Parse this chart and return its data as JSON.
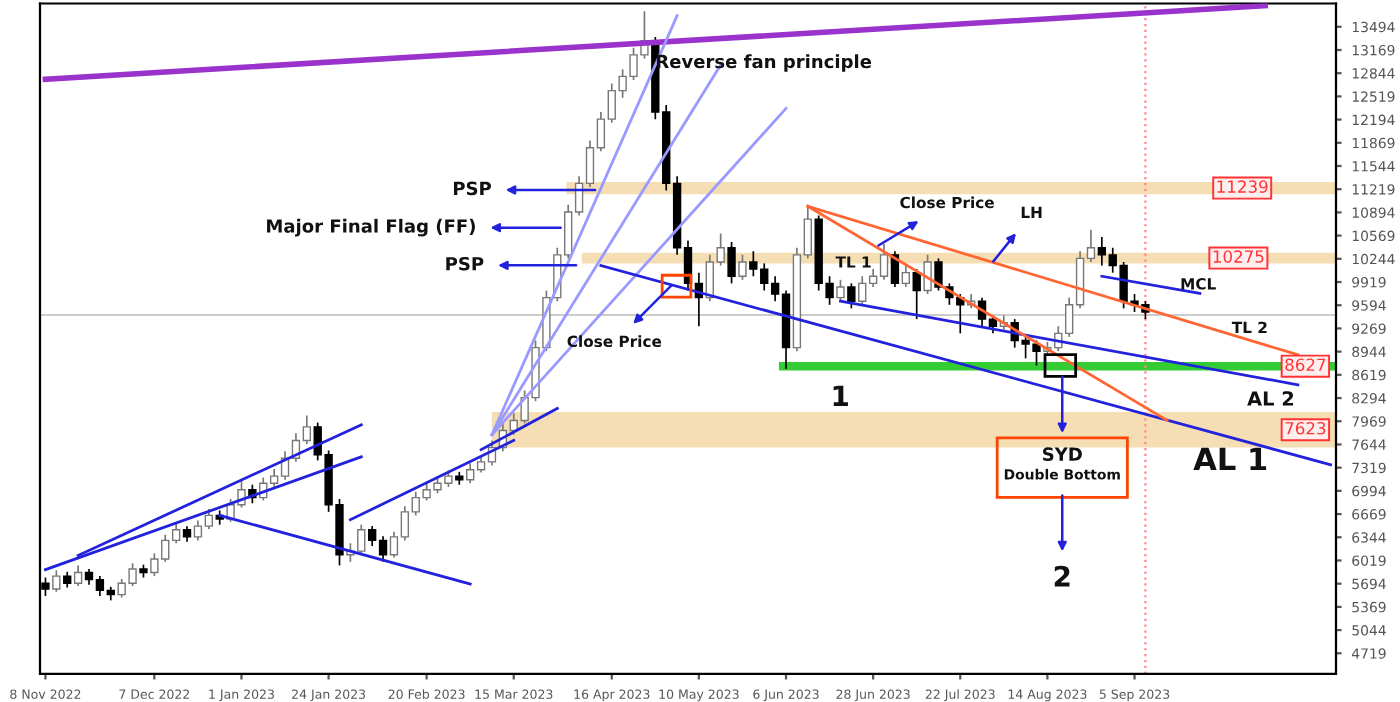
{
  "chart_data": {
    "type": "candlestick",
    "categories": [
      "8 Nov 2022",
      null,
      null,
      null,
      null,
      null,
      null,
      null,
      null,
      null,
      "7 Dec 2022",
      null,
      null,
      null,
      null,
      null,
      null,
      null,
      "1 Jan 2023",
      null,
      null,
      null,
      null,
      null,
      null,
      null,
      "24 Jan 2023",
      null,
      null,
      null,
      null,
      null,
      null,
      null,
      null,
      "20 Feb 2023",
      null,
      null,
      null,
      null,
      null,
      null,
      null,
      "15 Mar 2023",
      null,
      null,
      null,
      null,
      null,
      null,
      null,
      null,
      "16 Apr 2023",
      null,
      null,
      null,
      null,
      null,
      null,
      null,
      "10 May 2023",
      null,
      null,
      null,
      null,
      null,
      null,
      null,
      "6 Jun 2023",
      null,
      null,
      null,
      null,
      null,
      null,
      null,
      "28 Jun 2023",
      null,
      null,
      null,
      null,
      null,
      null,
      null,
      "22 Jul 2023",
      null,
      null,
      null,
      null,
      null,
      null,
      null,
      "14 Aug 2023",
      null,
      null,
      null,
      null,
      null,
      null,
      null,
      "5 Sep 2023",
      null,
      null,
      null,
      null,
      null,
      null,
      null,
      null,
      null,
      null,
      null,
      null,
      null,
      null,
      null,
      null,
      null,
      null
    ],
    "ohlc": [
      [
        5700,
        5780,
        5520,
        5620
      ],
      [
        5620,
        5880,
        5580,
        5800
      ],
      [
        5800,
        5860,
        5640,
        5700
      ],
      [
        5700,
        5950,
        5660,
        5850
      ],
      [
        5850,
        5900,
        5680,
        5750
      ],
      [
        5750,
        5800,
        5520,
        5600
      ],
      [
        5600,
        5650,
        5460,
        5540
      ],
      [
        5540,
        5760,
        5500,
        5700
      ],
      [
        5700,
        5980,
        5660,
        5900
      ],
      [
        5900,
        5960,
        5780,
        5850
      ],
      [
        5850,
        6120,
        5800,
        6040
      ],
      [
        6040,
        6380,
        6000,
        6300
      ],
      [
        6300,
        6540,
        6260,
        6450
      ],
      [
        6450,
        6500,
        6280,
        6350
      ],
      [
        6350,
        6580,
        6300,
        6500
      ],
      [
        6500,
        6740,
        6460,
        6650
      ],
      [
        6650,
        6720,
        6520,
        6600
      ],
      [
        6600,
        6880,
        6560,
        6800
      ],
      [
        6800,
        7150,
        6760,
        7010
      ],
      [
        7010,
        7080,
        6820,
        6900
      ],
      [
        6900,
        7180,
        6860,
        7100
      ],
      [
        7100,
        7300,
        7050,
        7200
      ],
      [
        7200,
        7550,
        7150,
        7450
      ],
      [
        7450,
        7800,
        7400,
        7700
      ],
      [
        7700,
        8050,
        7650,
        7890
      ],
      [
        7890,
        7950,
        7420,
        7500
      ],
      [
        7500,
        7560,
        6700,
        6800
      ],
      [
        6800,
        6880,
        5950,
        6100
      ],
      [
        6100,
        6260,
        6000,
        6150
      ],
      [
        6150,
        6520,
        6100,
        6450
      ],
      [
        6450,
        6500,
        6220,
        6300
      ],
      [
        6300,
        6360,
        6000,
        6100
      ],
      [
        6100,
        6420,
        6060,
        6350
      ],
      [
        6350,
        6780,
        6300,
        6700
      ],
      [
        6700,
        6980,
        6650,
        6900
      ],
      [
        6900,
        7100,
        6860,
        7010
      ],
      [
        7010,
        7200,
        6960,
        7100
      ],
      [
        7100,
        7280,
        7050,
        7200
      ],
      [
        7200,
        7260,
        7080,
        7150
      ],
      [
        7150,
        7380,
        7100,
        7290
      ],
      [
        7290,
        7480,
        7250,
        7400
      ],
      [
        7400,
        7700,
        7350,
        7600
      ],
      [
        7600,
        7950,
        7550,
        7840
      ],
      [
        7840,
        8080,
        7780,
        7980
      ],
      [
        7980,
        8400,
        7940,
        8300
      ],
      [
        8300,
        9100,
        8250,
        9000
      ],
      [
        9000,
        9800,
        8950,
        9700
      ],
      [
        9700,
        10400,
        9650,
        10300
      ],
      [
        10300,
        11000,
        10250,
        10900
      ],
      [
        10900,
        11400,
        10850,
        11300
      ],
      [
        11300,
        11900,
        11250,
        11800
      ],
      [
        11800,
        12300,
        11750,
        12200
      ],
      [
        12200,
        12700,
        12150,
        12600
      ],
      [
        12600,
        12900,
        12500,
        12800
      ],
      [
        12800,
        13200,
        12750,
        13100
      ],
      [
        13100,
        13710,
        13050,
        13300
      ],
      [
        13300,
        13350,
        12200,
        12300
      ],
      [
        12300,
        12400,
        11200,
        11300
      ],
      [
        11300,
        11400,
        10300,
        10400
      ],
      [
        10400,
        10500,
        9800,
        9900
      ],
      [
        9900,
        10050,
        9300,
        9700
      ],
      [
        9700,
        10300,
        9650,
        10200
      ],
      [
        10200,
        10600,
        10150,
        10400
      ],
      [
        10400,
        10480,
        9900,
        10000
      ],
      [
        10000,
        10300,
        9950,
        10200
      ],
      [
        10200,
        10350,
        10000,
        10100
      ],
      [
        10100,
        10180,
        9800,
        9900
      ],
      [
        9900,
        10000,
        9650,
        9750
      ],
      [
        9750,
        9800,
        8700,
        9000
      ],
      [
        9000,
        10400,
        8950,
        10300
      ],
      [
        10300,
        10980,
        10250,
        10800
      ],
      [
        10800,
        10850,
        9800,
        9900
      ],
      [
        9900,
        10000,
        9600,
        9700
      ],
      [
        9700,
        9950,
        9650,
        9850
      ],
      [
        9850,
        9900,
        9550,
        9650
      ],
      [
        9650,
        10000,
        9600,
        9900
      ],
      [
        9900,
        10100,
        9850,
        10000
      ],
      [
        10000,
        10450,
        9950,
        10300
      ],
      [
        10300,
        10350,
        9850,
        9900
      ],
      [
        9900,
        10150,
        9850,
        10050
      ],
      [
        10050,
        10100,
        9400,
        9800
      ],
      [
        9800,
        10300,
        9750,
        10200
      ],
      [
        10200,
        10250,
        9800,
        9850
      ],
      [
        9850,
        9900,
        9600,
        9700
      ],
      [
        9700,
        9750,
        9200,
        9600
      ],
      [
        9600,
        9750,
        9550,
        9650
      ],
      [
        9650,
        9700,
        9300,
        9400
      ],
      [
        9400,
        9450,
        9200,
        9300
      ],
      [
        9300,
        9450,
        9250,
        9350
      ],
      [
        9350,
        9400,
        9000,
        9100
      ],
      [
        9100,
        9180,
        8850,
        9050
      ],
      [
        9050,
        9100,
        8750,
        8950
      ],
      [
        8950,
        9080,
        8900,
        9000
      ],
      [
        9000,
        9300,
        8950,
        9200
      ],
      [
        9200,
        9700,
        9150,
        9600
      ],
      [
        9600,
        10350,
        9550,
        10250
      ],
      [
        10250,
        10650,
        10200,
        10400
      ],
      [
        10400,
        10550,
        10150,
        10300
      ],
      [
        10300,
        10400,
        10050,
        10150
      ],
      [
        10150,
        10200,
        9550,
        9650
      ],
      [
        9650,
        9750,
        9500,
        9600
      ],
      [
        9600,
        9650,
        9400,
        9500
      ],
      null,
      null,
      null,
      null,
      null,
      null,
      null,
      null,
      null,
      null,
      null,
      null,
      null,
      null,
      null,
      null,
      null
    ],
    "series": [
      {
        "type": "line",
        "color": "#9933cc",
        "values": [
          12760,
          null,
          null,
          null,
          null,
          null,
          null,
          null,
          null,
          null,
          null,
          null,
          null,
          null,
          null,
          null,
          null,
          null,
          null,
          null,
          null,
          null,
          null,
          null,
          null,
          null,
          null,
          null,
          null,
          null,
          null,
          null,
          null,
          null,
          null,
          null,
          null,
          null,
          null,
          null,
          null,
          null,
          null,
          null,
          null,
          null,
          null,
          null,
          null,
          null,
          null,
          null,
          null,
          null,
          null,
          null,
          null,
          null,
          null,
          null,
          null,
          null,
          null,
          null,
          null,
          null,
          null,
          null,
          null,
          null,
          null,
          null,
          null,
          null,
          null,
          null,
          null,
          null,
          null,
          null,
          null,
          null,
          null,
          null,
          null,
          null,
          null,
          null,
          null,
          null,
          null,
          null,
          null,
          null,
          null,
          null,
          null,
          null,
          null,
          null,
          null,
          null,
          null,
          null,
          null,
          null,
          null,
          null,
          null,
          null,
          null,
          null,
          13790,
          null,
          null,
          null,
          null,
          null,
          null
        ]
      },
      {
        "type": "line",
        "color": "#2222dd",
        "values": [
          null,
          null,
          null,
          6090,
          null,
          null,
          null,
          null,
          null,
          null,
          null,
          null,
          null,
          null,
          null,
          null,
          null,
          null,
          null,
          null,
          null,
          null,
          null,
          null,
          null,
          null,
          null,
          null,
          null,
          7920,
          null,
          null,
          null,
          null,
          null,
          null,
          null,
          null,
          null,
          null,
          null,
          null,
          null,
          null,
          null,
          null,
          null,
          null,
          null,
          null,
          null,
          null,
          null,
          null,
          null,
          null,
          null,
          null,
          null,
          null,
          null,
          null,
          null,
          null,
          null,
          null,
          null,
          null,
          null,
          null,
          null,
          null,
          null,
          null,
          null,
          null,
          null,
          null,
          null,
          null,
          null,
          null,
          null,
          null,
          null,
          null,
          null,
          null,
          null,
          null,
          null,
          null,
          null,
          null,
          null,
          null,
          null,
          null,
          null,
          null,
          null,
          null,
          null,
          null,
          null,
          null,
          null,
          null,
          null,
          null,
          null,
          null,
          null,
          null,
          null,
          null,
          null,
          null,
          null
        ]
      },
      {
        "type": "line",
        "color": "#2222dd",
        "values": [
          5890,
          null,
          null,
          null,
          null,
          null,
          null,
          null,
          null,
          null,
          null,
          null,
          null,
          null,
          null,
          null,
          null,
          null,
          null,
          null,
          null,
          null,
          null,
          null,
          null,
          null,
          null,
          null,
          null,
          7470,
          null,
          null,
          null,
          null,
          null,
          null,
          null,
          null,
          null,
          null,
          null,
          null,
          null,
          null,
          null,
          null,
          null,
          null,
          null,
          null,
          null,
          null,
          null,
          null,
          null,
          null,
          null,
          null,
          null,
          null,
          null,
          null,
          null,
          null,
          null,
          null,
          null,
          null,
          null,
          null,
          null,
          null,
          null,
          null,
          null,
          null,
          null,
          null,
          null,
          null,
          null,
          null,
          null,
          null,
          null,
          null,
          null,
          null,
          null,
          null,
          null,
          null,
          null,
          null,
          null,
          null,
          null,
          null,
          null,
          null,
          null,
          null,
          null,
          null,
          null,
          null,
          null,
          null,
          null,
          null,
          null,
          null,
          null,
          null,
          null,
          null,
          null,
          null,
          null
        ]
      },
      {
        "type": "line",
        "color": "#2222dd",
        "values": [
          null,
          null,
          null,
          null,
          null,
          null,
          null,
          null,
          null,
          null,
          null,
          null,
          null,
          null,
          null,
          null,
          6650,
          null,
          null,
          null,
          null,
          null,
          null,
          null,
          null,
          null,
          null,
          null,
          null,
          null,
          null,
          null,
          null,
          null,
          null,
          null,
          null,
          null,
          null,
          5690,
          null,
          null,
          null,
          null,
          null,
          null,
          null,
          null,
          null,
          null,
          null,
          null,
          null,
          null,
          null,
          null,
          null,
          null,
          null,
          null,
          null,
          null,
          null,
          null,
          null,
          null,
          null,
          null,
          null,
          null,
          null,
          null,
          null,
          null,
          null,
          null,
          null,
          null,
          null,
          null,
          null,
          null,
          null,
          null,
          null,
          null,
          null,
          null,
          null,
          null,
          null,
          null,
          null,
          null,
          null,
          null,
          null,
          null,
          null,
          null,
          null,
          null,
          null,
          null,
          null,
          null,
          null,
          null,
          null,
          null,
          null,
          null,
          null,
          null,
          null,
          null,
          null,
          null,
          null
        ]
      },
      {
        "type": "line",
        "color": "#2222dd",
        "values": [
          null,
          null,
          null,
          null,
          null,
          null,
          null,
          null,
          null,
          null,
          null,
          null,
          null,
          null,
          null,
          null,
          null,
          null,
          null,
          null,
          null,
          null,
          null,
          null,
          null,
          null,
          null,
          null,
          6590,
          null,
          null,
          null,
          null,
          null,
          null,
          null,
          null,
          null,
          null,
          null,
          null,
          null,
          null,
          7700,
          null,
          null,
          null,
          null,
          null,
          null,
          null,
          null,
          null,
          null,
          null,
          null,
          null,
          null,
          null,
          null,
          null,
          null,
          null,
          null,
          null,
          null,
          null,
          null,
          null,
          null,
          null,
          null,
          null,
          null,
          null,
          null,
          null,
          null,
          null,
          null,
          null,
          null,
          null,
          null,
          null,
          null,
          null,
          null,
          null,
          null,
          null,
          null,
          null,
          null,
          null,
          null,
          null,
          null,
          null,
          null,
          null,
          null,
          null,
          null,
          null,
          null,
          null,
          null,
          null,
          null,
          null,
          null,
          null,
          null,
          null,
          null,
          null,
          null,
          null
        ]
      },
      {
        "type": "line",
        "color": "#2222dd",
        "values": [
          null,
          null,
          null,
          null,
          null,
          null,
          null,
          null,
          null,
          null,
          null,
          null,
          null,
          null,
          null,
          null,
          null,
          null,
          null,
          null,
          null,
          null,
          null,
          null,
          null,
          null,
          null,
          null,
          null,
          null,
          null,
          null,
          null,
          null,
          null,
          null,
          null,
          null,
          null,
          null,
          7570,
          null,
          null,
          null,
          null,
          null,
          null,
          8150,
          null,
          null,
          null,
          null,
          null,
          null,
          null,
          null,
          null,
          null,
          null,
          null,
          null,
          null,
          null,
          null,
          null,
          null,
          null,
          null,
          null,
          null,
          null,
          null,
          null,
          null,
          null,
          null,
          null,
          null,
          null,
          null,
          null,
          null,
          null,
          null,
          null,
          null,
          null,
          null,
          null,
          null,
          null,
          null,
          null,
          null,
          null,
          null,
          null,
          null,
          null,
          null,
          null,
          null,
          null,
          null,
          null,
          null,
          null,
          null,
          null,
          null,
          null,
          null,
          null,
          null,
          null,
          null,
          null,
          null,
          null
        ]
      },
      {
        "type": "line",
        "color": "#9999ff",
        "values": [
          null,
          null,
          null,
          null,
          null,
          null,
          null,
          null,
          null,
          null,
          null,
          null,
          null,
          null,
          null,
          null,
          null,
          null,
          null,
          null,
          null,
          null,
          null,
          null,
          null,
          null,
          null,
          null,
          null,
          null,
          null,
          null,
          null,
          null,
          null,
          null,
          null,
          null,
          null,
          null,
          null,
          7780,
          null,
          null,
          null,
          null,
          null,
          null,
          null,
          null,
          null,
          null,
          null,
          null,
          null,
          null,
          null,
          null,
          13650,
          null,
          null,
          null,
          null,
          null,
          null,
          null,
          null,
          null,
          null,
          null,
          null,
          null,
          null,
          null,
          null,
          null,
          null,
          null,
          null,
          null,
          null,
          null,
          null,
          null,
          null,
          null,
          null,
          null,
          null,
          null,
          null,
          null,
          null,
          null,
          null,
          null,
          null,
          null,
          null,
          null,
          null,
          null,
          null,
          null,
          null,
          null,
          null,
          null,
          null,
          null,
          null,
          null,
          null,
          null,
          null,
          null,
          null,
          null,
          null
        ]
      },
      {
        "type": "line",
        "color": "#9999ff",
        "values": [
          null,
          null,
          null,
          null,
          null,
          null,
          null,
          null,
          null,
          null,
          null,
          null,
          null,
          null,
          null,
          null,
          null,
          null,
          null,
          null,
          null,
          null,
          null,
          null,
          null,
          null,
          null,
          null,
          null,
          null,
          null,
          null,
          null,
          null,
          null,
          null,
          null,
          null,
          null,
          null,
          null,
          7780,
          null,
          null,
          null,
          null,
          null,
          null,
          null,
          null,
          null,
          null,
          null,
          null,
          null,
          null,
          null,
          null,
          null,
          null,
          null,
          null,
          12960,
          null,
          null,
          null,
          null,
          null,
          null,
          null,
          null,
          null,
          null,
          null,
          null,
          null,
          null,
          null,
          null,
          null,
          null,
          null,
          null,
          null,
          null,
          null,
          null,
          null,
          null,
          null,
          null,
          null,
          null,
          null,
          null,
          null,
          null,
          null,
          null,
          null,
          null,
          null,
          null,
          null,
          null,
          null,
          null,
          null,
          null,
          null,
          null,
          null,
          null,
          null,
          null,
          null,
          null,
          null,
          null
        ]
      },
      {
        "type": "line",
        "color": "#9999ff",
        "values": [
          null,
          null,
          null,
          null,
          null,
          null,
          null,
          null,
          null,
          null,
          null,
          null,
          null,
          null,
          null,
          null,
          null,
          null,
          null,
          null,
          null,
          null,
          null,
          null,
          null,
          null,
          null,
          null,
          null,
          null,
          null,
          null,
          null,
          null,
          null,
          null,
          null,
          null,
          null,
          null,
          null,
          7780,
          null,
          null,
          null,
          null,
          null,
          null,
          null,
          null,
          null,
          null,
          null,
          null,
          null,
          null,
          null,
          null,
          null,
          null,
          null,
          null,
          null,
          null,
          null,
          null,
          null,
          null,
          12350,
          null,
          null,
          null,
          null,
          null,
          null,
          null,
          null,
          null,
          null,
          null,
          null,
          null,
          null,
          null,
          null,
          null,
          null,
          null,
          null,
          null,
          null,
          null,
          null,
          null,
          null,
          null,
          null,
          null,
          null,
          null,
          null,
          null,
          null,
          null,
          null,
          null,
          null,
          null,
          null,
          null,
          null,
          null,
          null,
          null,
          null,
          null,
          null,
          null,
          null
        ]
      },
      {
        "type": "line",
        "color": "#2222dd",
        "values": [
          null,
          null,
          null,
          null,
          null,
          null,
          null,
          null,
          null,
          null,
          null,
          null,
          null,
          null,
          null,
          null,
          null,
          null,
          null,
          null,
          null,
          null,
          null,
          null,
          null,
          null,
          null,
          null,
          null,
          null,
          null,
          null,
          null,
          null,
          null,
          null,
          null,
          null,
          null,
          null,
          null,
          null,
          null,
          null,
          null,
          null,
          null,
          null,
          null,
          null,
          null,
          10150,
          null,
          null,
          null,
          null,
          null,
          null,
          null,
          null,
          null,
          null,
          null,
          null,
          null,
          null,
          null,
          null,
          null,
          null,
          null,
          null,
          null,
          null,
          null,
          null,
          null,
          null,
          null,
          null,
          null,
          null,
          null,
          null,
          null,
          null,
          null,
          null,
          null,
          null,
          null,
          null,
          null,
          null,
          null,
          null,
          null,
          null,
          null,
          null,
          null,
          null,
          null,
          null,
          null,
          null,
          null,
          null,
          null,
          null,
          null,
          null,
          null,
          null,
          null,
          null,
          null,
          null,
          7360
        ]
      },
      {
        "type": "line",
        "color": "#2222dd",
        "values": [
          null,
          null,
          null,
          null,
          null,
          null,
          null,
          null,
          null,
          null,
          null,
          null,
          null,
          null,
          null,
          null,
          null,
          null,
          null,
          null,
          null,
          null,
          null,
          null,
          null,
          null,
          null,
          null,
          null,
          null,
          null,
          null,
          null,
          null,
          null,
          null,
          null,
          null,
          null,
          null,
          null,
          null,
          null,
          null,
          null,
          null,
          null,
          null,
          null,
          null,
          null,
          null,
          null,
          null,
          null,
          null,
          null,
          null,
          null,
          null,
          null,
          null,
          null,
          null,
          null,
          null,
          null,
          null,
          null,
          null,
          null,
          null,
          null,
          9650,
          null,
          null,
          null,
          null,
          null,
          null,
          null,
          null,
          null,
          null,
          null,
          null,
          null,
          null,
          null,
          null,
          null,
          null,
          null,
          null,
          null,
          null,
          null,
          null,
          null,
          null,
          null,
          null,
          null,
          null,
          null,
          null,
          null,
          null,
          null,
          null,
          null,
          null,
          null,
          null,
          null,
          8480,
          null,
          null,
          null
        ]
      },
      {
        "type": "line",
        "color": "#2222dd",
        "values": [
          null,
          null,
          null,
          null,
          null,
          null,
          null,
          null,
          null,
          null,
          null,
          null,
          null,
          null,
          null,
          null,
          null,
          null,
          null,
          null,
          null,
          null,
          null,
          null,
          null,
          null,
          null,
          null,
          null,
          null,
          null,
          null,
          null,
          null,
          null,
          null,
          null,
          null,
          null,
          null,
          null,
          null,
          null,
          null,
          null,
          null,
          null,
          null,
          null,
          null,
          null,
          null,
          null,
          null,
          null,
          null,
          null,
          null,
          null,
          null,
          null,
          null,
          null,
          null,
          null,
          null,
          null,
          null,
          null,
          null,
          null,
          null,
          null,
          null,
          null,
          null,
          null,
          null,
          null,
          null,
          null,
          null,
          null,
          null,
          null,
          null,
          null,
          null,
          null,
          null,
          null,
          null,
          null,
          null,
          null,
          null,
          null,
          10000,
          null,
          null,
          null,
          null,
          null,
          null,
          null,
          null,
          9760,
          null,
          null,
          null,
          null,
          null,
          null,
          null,
          null,
          null,
          null,
          null,
          null
        ]
      },
      {
        "type": "line",
        "color": "#ff6633",
        "values": [
          null,
          null,
          null,
          null,
          null,
          null,
          null,
          null,
          null,
          null,
          null,
          null,
          null,
          null,
          null,
          null,
          null,
          null,
          null,
          null,
          null,
          null,
          null,
          null,
          null,
          null,
          null,
          null,
          null,
          null,
          null,
          null,
          null,
          null,
          null,
          null,
          null,
          null,
          null,
          null,
          null,
          null,
          null,
          null,
          null,
          null,
          null,
          null,
          null,
          null,
          null,
          null,
          null,
          null,
          null,
          null,
          null,
          null,
          null,
          null,
          null,
          null,
          null,
          null,
          null,
          null,
          null,
          null,
          null,
          null,
          10980,
          null,
          null,
          null,
          null,
          null,
          null,
          null,
          null,
          null,
          null,
          null,
          null,
          null,
          null,
          null,
          null,
          null,
          null,
          null,
          null,
          null,
          null,
          null,
          null,
          null,
          null,
          null,
          null,
          null,
          null,
          null,
          null,
          7980,
          null,
          null,
          null,
          null,
          null,
          null,
          null,
          null,
          null,
          null,
          null,
          null,
          null,
          null,
          null
        ]
      },
      {
        "type": "line",
        "color": "#ff6633",
        "values": [
          null,
          null,
          null,
          null,
          null,
          null,
          null,
          null,
          null,
          null,
          null,
          null,
          null,
          null,
          null,
          null,
          null,
          null,
          null,
          null,
          null,
          null,
          null,
          null,
          null,
          null,
          null,
          null,
          null,
          null,
          null,
          null,
          null,
          null,
          null,
          null,
          null,
          null,
          null,
          null,
          null,
          null,
          null,
          null,
          null,
          null,
          null,
          null,
          null,
          null,
          null,
          null,
          null,
          null,
          null,
          null,
          null,
          null,
          null,
          null,
          null,
          null,
          null,
          null,
          null,
          null,
          null,
          null,
          null,
          null,
          10980,
          null,
          null,
          null,
          null,
          null,
          null,
          null,
          null,
          null,
          null,
          null,
          null,
          null,
          null,
          null,
          null,
          null,
          null,
          null,
          null,
          null,
          null,
          null,
          null,
          null,
          null,
          null,
          null,
          null,
          null,
          null,
          null,
          null,
          null,
          null,
          null,
          null,
          null,
          null,
          null,
          null,
          null,
          null,
          null,
          8900,
          null,
          null,
          null
        ]
      }
    ],
    "ylim": [
      4430,
      13820
    ],
    "yticks": [
      4719,
      5044,
      5369,
      5694,
      6019,
      6344,
      6669,
      6994,
      7319,
      7644,
      7969,
      8294,
      8619,
      8944,
      9269,
      9594,
      9919,
      10244,
      10569,
      10894,
      11219,
      11544,
      11869,
      12194,
      12519,
      12844,
      13169,
      13494
    ],
    "bands": [
      {
        "axis": "y",
        "from": 11150,
        "to": 11320,
        "label": "11239",
        "color": "#f5deb3"
      },
      {
        "axis": "y",
        "from": 10180,
        "to": 10330,
        "label": "10275",
        "color": "#f5deb3"
      },
      {
        "axis": "y",
        "from": 8680,
        "to": 8800,
        "label": "8627",
        "color": "#33cc33"
      },
      {
        "axis": "y",
        "from": 7600,
        "to": 8100,
        "label": "7623",
        "color": "#f5deb3"
      }
    ],
    "ref_lines": [
      {
        "axis": "y",
        "value": 9457,
        "color": "#cccccc",
        "line_style": "solid"
      }
    ],
    "annotations": [
      "Reverse fan principle",
      "PSP",
      "Major Final Flag (FF)",
      "PSP",
      "Close Price",
      "Close Price",
      "TL 1",
      "LH",
      "MCL",
      "TL 2",
      "1",
      "AL 2",
      "AL 1",
      "SYD",
      "Double Bottom",
      "2"
    ],
    "grid": false
  }
}
